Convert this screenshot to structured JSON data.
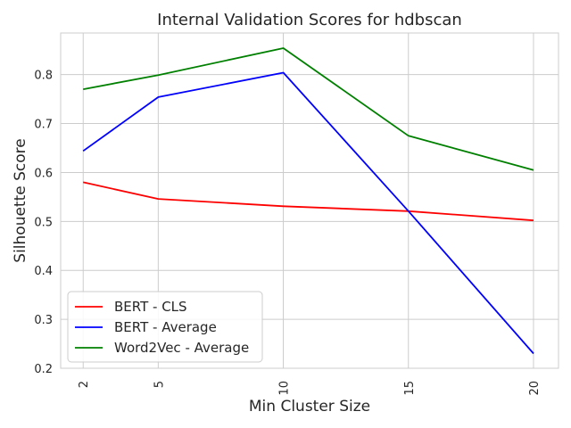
{
  "chart_data": {
    "type": "line",
    "title": "Internal Validation Scores for hdbscan",
    "xlabel": "Min Cluster Size",
    "ylabel": "Silhouette Score",
    "x": [
      2,
      5,
      10,
      15,
      20
    ],
    "xticks": [
      "2",
      "5",
      "10",
      "15",
      "20"
    ],
    "yticks": [
      "0.2",
      "0.3",
      "0.4",
      "0.5",
      "0.6",
      "0.7",
      "0.8"
    ],
    "xlim": [
      1.1,
      21
    ],
    "ylim": [
      0.2,
      0.885
    ],
    "grid": true,
    "legend_position": "lower-left",
    "series": [
      {
        "name": "BERT - CLS",
        "color": "#ff0000",
        "values": [
          0.58,
          0.546,
          0.531,
          0.521,
          0.502
        ]
      },
      {
        "name": "BERT - Average",
        "color": "#0000ff",
        "values": [
          0.644,
          0.754,
          0.804,
          0.521,
          0.23
        ]
      },
      {
        "name": "Word2Vec - Average",
        "color": "#008000",
        "values": [
          0.77,
          0.799,
          0.854,
          0.675,
          0.605
        ]
      }
    ]
  }
}
